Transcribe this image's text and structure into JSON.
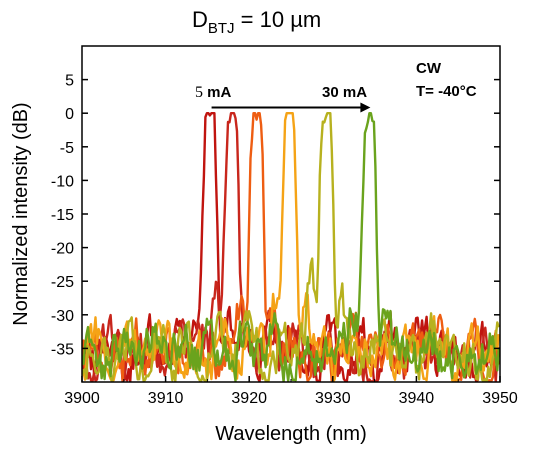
{
  "chart_data": {
    "type": "line",
    "title_main": "D",
    "title_sub": "BTJ",
    "title_rest": " = 10 µm",
    "xlabel": "Wavelength (nm)",
    "ylabel": "Normalized intensity (dB)",
    "xlim": [
      3900,
      3950
    ],
    "ylim": [
      -40,
      10
    ],
    "xticks": [
      3900,
      3910,
      3920,
      3930,
      3940,
      3950
    ],
    "xtick_labels": [
      "3900",
      "3910",
      "3920",
      "3930",
      "3940",
      "3950"
    ],
    "yticks": [
      5,
      0,
      -5,
      -10,
      -15,
      -20,
      -25,
      -30,
      -35
    ],
    "ytick_labels": [
      "5",
      "0",
      "-5",
      "-10",
      "-15",
      "-20",
      "-25",
      "-30",
      "-35"
    ],
    "grid": false,
    "annotations": {
      "start_current_num": "5",
      "start_current_unit": " mA",
      "end_current": "30 mA",
      "arrow_from": [
        3915.5,
        0.7
      ],
      "arrow_to": [
        3934.5,
        0.7
      ],
      "mode": "CW",
      "temperature": "T= -40°C"
    },
    "series": [
      {
        "peak_x": 3915.3,
        "color": "#c0140f",
        "noise_seed": 11
      },
      {
        "peak_x": 3917.9,
        "color": "#c8261c",
        "noise_seed": 23
      },
      {
        "peak_x": 3920.9,
        "color": "#ee5d12",
        "noise_seed": 37
      },
      {
        "peak_x": 3924.8,
        "color": "#f5a316",
        "noise_seed": 41
      },
      {
        "peak_x": 3929.2,
        "color": "#b7b11f",
        "noise_seed": 53
      },
      {
        "peak_x": 3934.4,
        "color": "#6aa31d",
        "noise_seed": 67
      }
    ]
  }
}
